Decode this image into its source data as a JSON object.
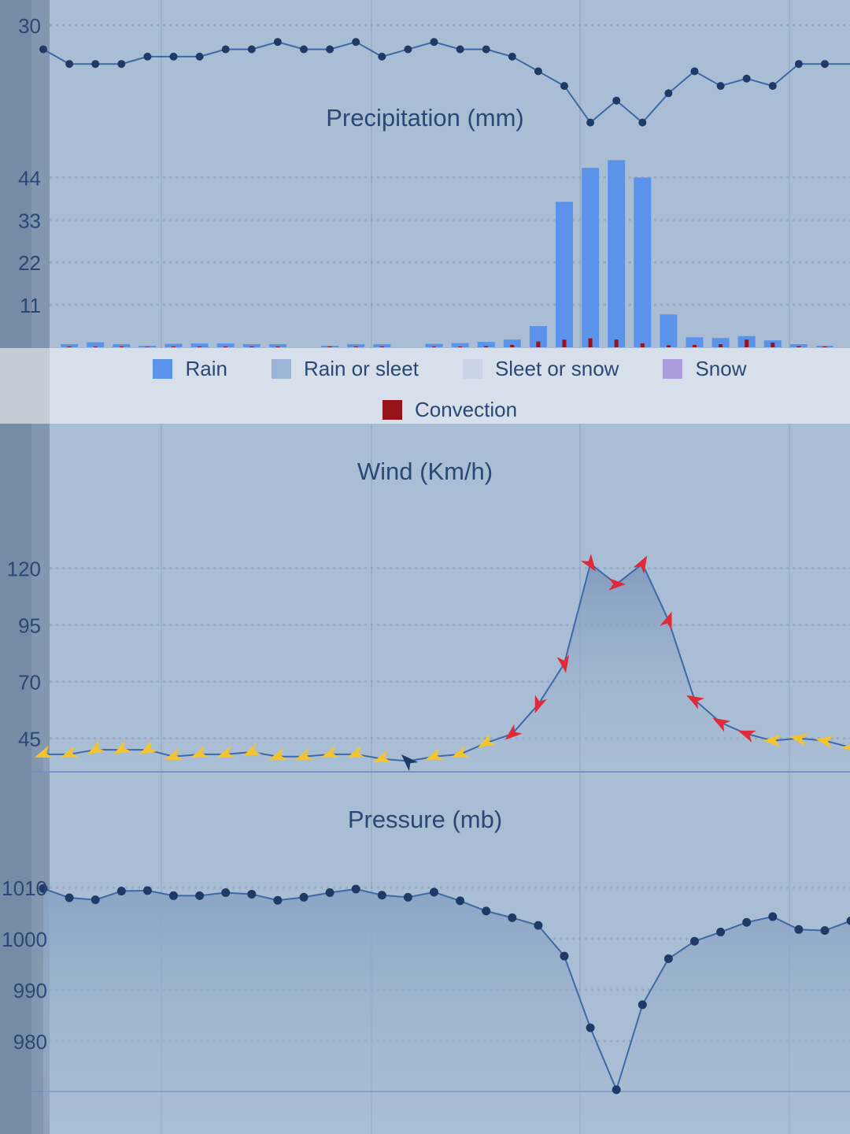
{
  "chart_data": [
    {
      "type": "line",
      "series": [
        {
          "values": [
            29.8,
            29.6,
            29.6,
            29.6,
            29.7,
            29.7,
            29.7,
            29.8,
            29.8,
            29.9,
            29.8,
            29.8,
            29.9,
            29.7,
            29.8,
            29.9,
            29.8,
            29.8,
            29.7,
            29.5,
            29.3,
            28.8,
            29.1,
            28.8,
            29.2,
            29.5,
            29.3,
            29.4,
            29.3,
            29.6,
            29.6
          ]
        }
      ],
      "y_ticks": [
        "30"
      ]
    },
    {
      "type": "bar",
      "title": "Precipitation (mm)",
      "y_ticks": [
        "11",
        "22",
        "33",
        "44"
      ],
      "ylim": [
        0,
        55
      ],
      "series": [
        {
          "name": "Rain",
          "values": [
            0,
            0.8,
            1.3,
            0.8,
            0.4,
            0.9,
            1.0,
            1.0,
            0.8,
            0.8,
            0,
            0.4,
            0.8,
            0.8,
            0,
            0.9,
            1.1,
            1.4,
            2.0,
            5.5,
            37.7,
            46.5,
            48.5,
            44.0,
            8.5,
            2.6,
            2.4,
            2.9,
            1.8,
            0.8,
            0.4
          ]
        },
        {
          "name": "Convection",
          "values": [
            0,
            0.2,
            0.2,
            0.2,
            0.1,
            0.2,
            0.2,
            0.2,
            0.2,
            0.2,
            0,
            0.2,
            0.2,
            0.2,
            0,
            0.2,
            0.2,
            0.3,
            0.6,
            1.5,
            2.0,
            2.3,
            2.0,
            1.0,
            0.5,
            0.6,
            0.8,
            2.0,
            1.2,
            0.3,
            0.2
          ]
        }
      ],
      "legend": [
        {
          "name": "Rain",
          "color": "#5c93ea"
        },
        {
          "name": "Rain or sleet",
          "color": "#9ab5d6"
        },
        {
          "name": "Sleet or snow",
          "color": "#cad4e6"
        },
        {
          "name": "Snow",
          "color": "#a99ddc"
        },
        {
          "name": "Convection",
          "color": "#961419"
        }
      ]
    },
    {
      "type": "area",
      "title": "Wind (Km/h)",
      "y_ticks": [
        "45",
        "70",
        "95",
        "120"
      ],
      "series": [
        {
          "values": [
            38,
            38,
            40,
            40,
            40,
            37,
            38,
            38,
            39,
            37,
            37,
            38,
            38,
            36,
            35,
            37,
            38,
            43,
            47,
            60,
            78,
            122,
            113,
            122,
            97,
            62,
            52,
            47,
            44,
            45,
            44,
            41
          ],
          "directions": [
            250,
            250,
            240,
            240,
            240,
            250,
            250,
            250,
            245,
            250,
            250,
            250,
            250,
            250,
            315,
            250,
            250,
            240,
            230,
            200,
            170,
            145,
            90,
            30,
            20,
            300,
            300,
            290,
            270,
            280,
            280,
            270
          ]
        }
      ]
    },
    {
      "type": "area",
      "title": "Pressure (mb)",
      "y_ticks": [
        "980",
        "990",
        "1000",
        "1010"
      ],
      "series": [
        {
          "values": [
            1009.8,
            1008,
            1007.6,
            1009.3,
            1009.4,
            1008.4,
            1008.4,
            1009,
            1008.7,
            1007.5,
            1008.1,
            1009,
            1009.7,
            1008.5,
            1008.1,
            1009.1,
            1007.4,
            1005.4,
            1004.1,
            1002.6,
            996.6,
            982.6,
            970.5,
            987.1,
            996.1,
            999.5,
            1001.3,
            1003.2,
            1004.3,
            1001.8,
            1001.6,
            1003.5
          ]
        }
      ]
    }
  ],
  "colors": {
    "background": "#a9bed4",
    "left_axis": "#778aa4",
    "grid": "#8fa8c4",
    "line": "#3d69a8",
    "point": "#1f3a66",
    "text": "#2b4874",
    "wind_low": "#f4c430",
    "wind_high": "#e02a3a"
  }
}
